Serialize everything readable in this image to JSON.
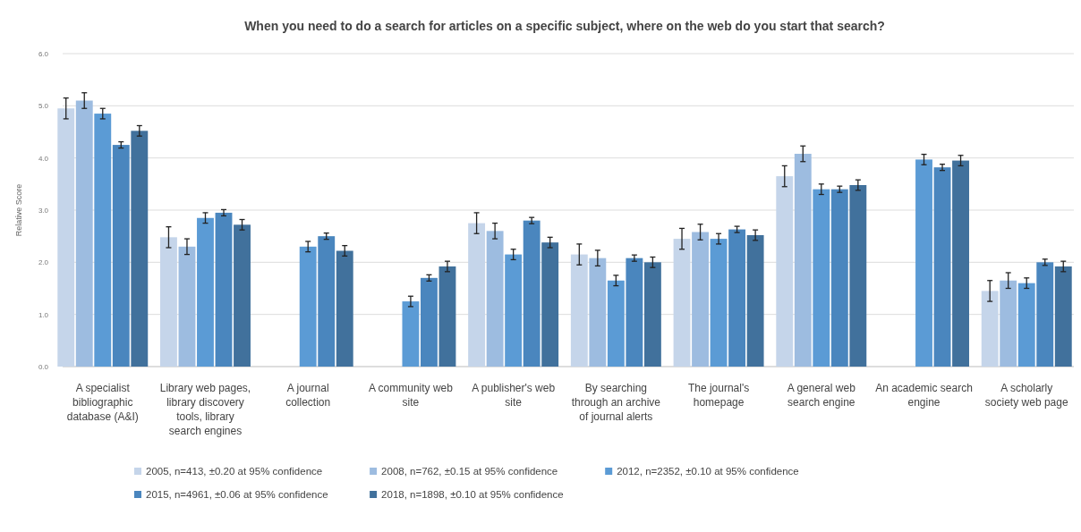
{
  "chart_data": {
    "type": "bar",
    "title": "When you need to do a search for articles on a specific subject, where on the web do you start that search?",
    "ylabel": "Relative Score",
    "categories": [
      "A specialist bibliographic database (A&I)",
      "Library web pages, library discovery tools, library search engines",
      "A journal collection",
      "A community web site",
      "A publisher's web site",
      "By searching through an archive of journal alerts",
      "The journal's homepage",
      "A general web search engine",
      "An academic search engine",
      "A scholarly society web page"
    ],
    "series": [
      {
        "name": "2005, n=413,  ±0.20 at 95% confidence",
        "color": "#c5d5ea",
        "values": [
          4.95,
          2.48,
          null,
          null,
          2.75,
          2.15,
          2.45,
          3.65,
          null,
          1.45
        ],
        "errors": [
          0.2,
          0.2,
          null,
          null,
          0.2,
          0.2,
          0.2,
          0.2,
          null,
          0.2
        ]
      },
      {
        "name": "2008, n=762,  ±0.15 at 95% confidence",
        "color": "#9dbce0",
        "values": [
          5.1,
          2.3,
          null,
          null,
          2.6,
          2.08,
          2.58,
          4.08,
          null,
          1.65
        ],
        "errors": [
          0.15,
          0.15,
          null,
          null,
          0.15,
          0.15,
          0.15,
          0.15,
          null,
          0.15
        ]
      },
      {
        "name": "2012, n=2352, ±0.10 at 95% confidence",
        "color": "#5b9bd5",
        "values": [
          4.85,
          2.85,
          2.3,
          1.25,
          2.15,
          1.65,
          2.45,
          3.4,
          3.97,
          1.6
        ],
        "errors": [
          0.1,
          0.1,
          0.1,
          0.1,
          0.1,
          0.1,
          0.1,
          0.1,
          0.1,
          0.1
        ]
      },
      {
        "name": "2015, n=4961, ±0.06 at 95% confidence",
        "color": "#4a86be",
        "values": [
          4.25,
          2.95,
          2.5,
          1.7,
          2.8,
          2.08,
          2.63,
          3.4,
          3.82,
          2.0
        ],
        "errors": [
          0.06,
          0.06,
          0.06,
          0.06,
          0.06,
          0.06,
          0.06,
          0.06,
          0.06,
          0.06
        ]
      },
      {
        "name": "2018, n=1898, ±0.10 at 95% confidence",
        "color": "#41719c",
        "values": [
          4.52,
          2.72,
          2.22,
          1.92,
          2.38,
          2.0,
          2.52,
          3.48,
          3.95,
          1.92
        ],
        "errors": [
          0.1,
          0.1,
          0.1,
          0.1,
          0.1,
          0.1,
          0.1,
          0.1,
          0.1,
          0.1
        ]
      }
    ],
    "ylim": [
      0,
      6
    ],
    "yticks": [
      {
        "value": 0,
        "label": "0.0"
      },
      {
        "value": 1,
        "label": "1.0"
      },
      {
        "value": 2,
        "label": "2.0"
      },
      {
        "value": 3,
        "label": "3.0"
      },
      {
        "value": 4,
        "label": "4.0"
      },
      {
        "value": 5,
        "label": "5.0"
      },
      {
        "value": 6,
        "label": "6.0"
      }
    ],
    "grid": "y",
    "legend": "bottom"
  }
}
